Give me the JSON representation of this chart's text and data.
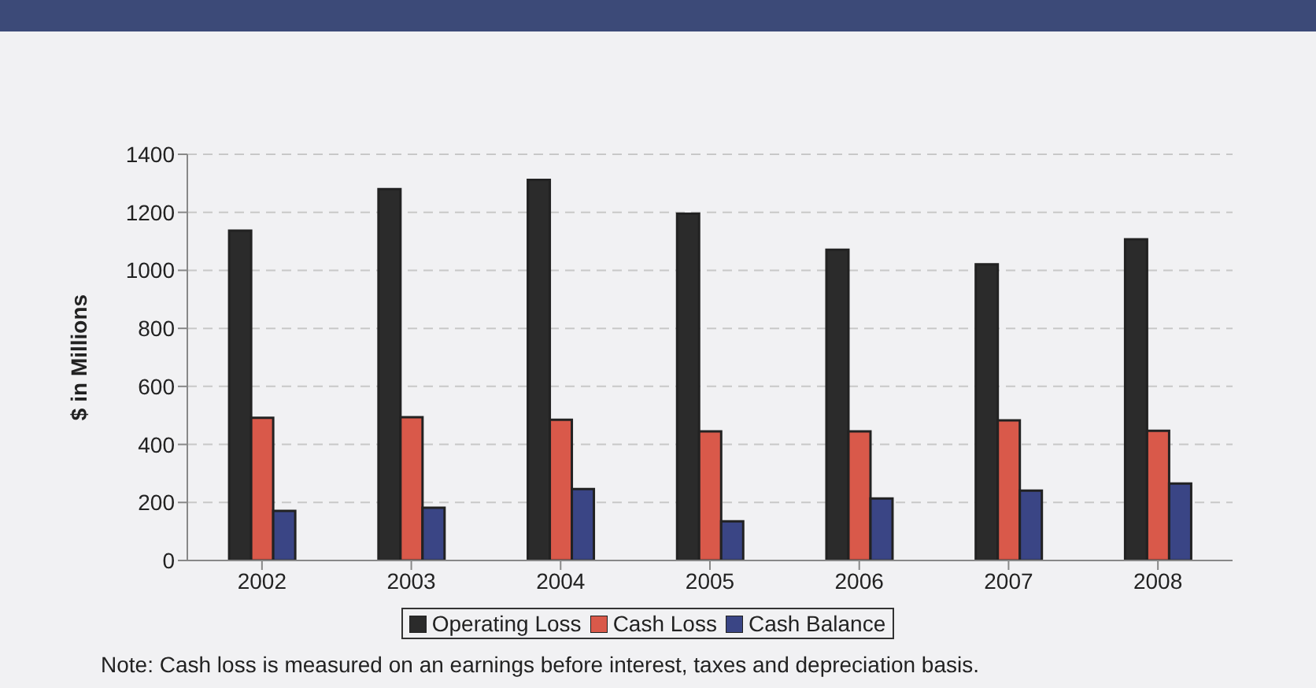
{
  "chart_data": {
    "type": "bar",
    "ylabel": "$ in Millions",
    "categories": [
      "2002",
      "2003",
      "2004",
      "2005",
      "2006",
      "2007",
      "2008"
    ],
    "series": [
      {
        "name": "Operating Loss",
        "color": "#2b2b2b",
        "values": [
          1137,
          1280,
          1312,
          1195,
          1071,
          1021,
          1107
        ]
      },
      {
        "name": "Cash Loss",
        "color": "#d9594a",
        "values": [
          492,
          494,
          485,
          445,
          445,
          483,
          447
        ]
      },
      {
        "name": "Cash Balance",
        "color": "#3a4585",
        "values": [
          171,
          182,
          246,
          135,
          214,
          241,
          265
        ]
      }
    ],
    "ylim": [
      0,
      1400
    ],
    "yticks": [
      0,
      200,
      400,
      600,
      800,
      1000,
      1200,
      1400
    ],
    "grid": "y",
    "legend": "bottom",
    "annotations": [
      "Note: Cash loss is measured on an earnings before interest, taxes and depreciation basis."
    ]
  }
}
